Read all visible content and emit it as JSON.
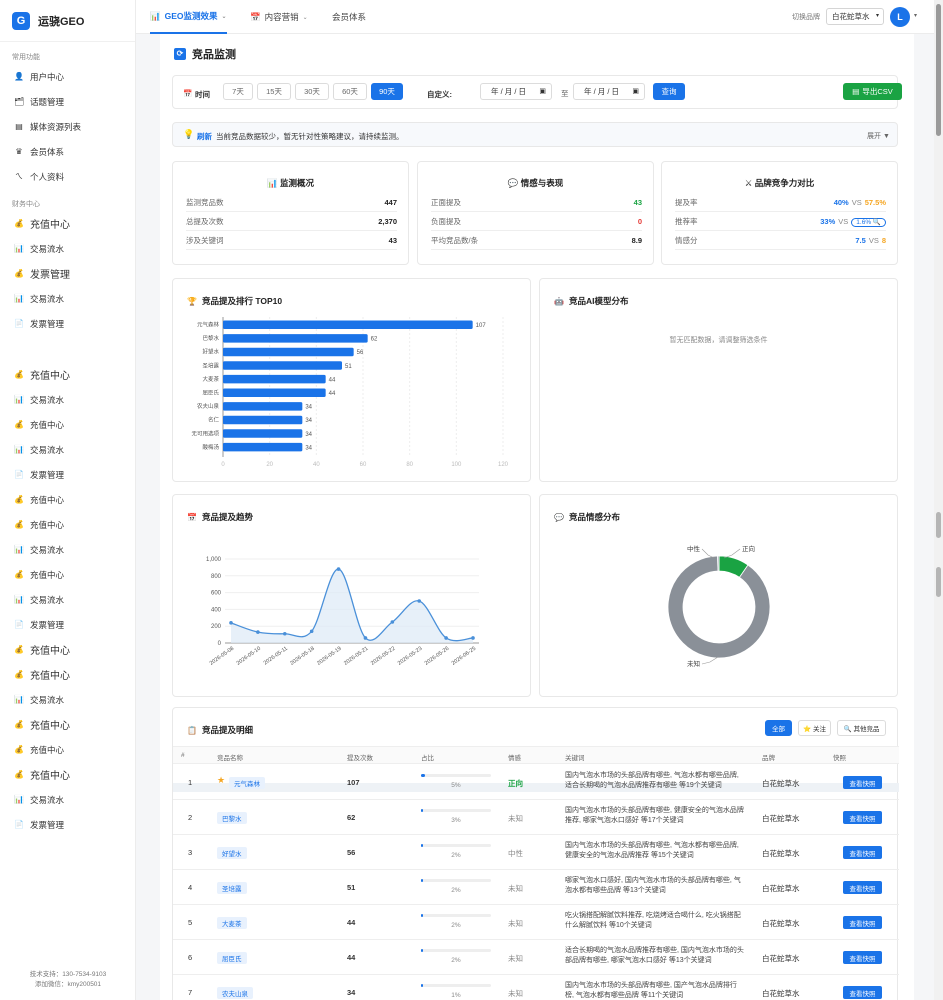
{
  "app": {
    "logo_letter": "G",
    "name": "运骁GEO"
  },
  "sidebar": {
    "groups": [
      {
        "label": "常用功能",
        "items": [
          {
            "icon": "user-icon",
            "glyph": "👤",
            "label": "用户中心"
          },
          {
            "icon": "topic-icon",
            "glyph": "🗂",
            "label": "话题管理"
          },
          {
            "icon": "media-icon",
            "glyph": "▤",
            "label": "媒体资源列表"
          },
          {
            "icon": "member-icon",
            "glyph": "♛",
            "label": "会员体系"
          },
          {
            "icon": "profile-icon",
            "glyph": "ㄟ",
            "label": "个人资料"
          }
        ]
      },
      {
        "label": "财务中心",
        "items": [
          {
            "icon": "money-bag-icon",
            "glyph": "💰",
            "label": "充值中心",
            "big": true
          },
          {
            "icon": "chart-icon",
            "glyph": "📊",
            "label": "交易流水"
          },
          {
            "icon": "money-bag-icon",
            "glyph": "💰",
            "label": "发票管理",
            "big": true
          },
          {
            "icon": "chart-icon",
            "glyph": "📊",
            "label": "交易流水"
          },
          {
            "icon": "doc-icon",
            "glyph": "📄",
            "label": "发票管理"
          },
          {
            "icon": "money-bag-icon",
            "glyph": "💰",
            "label": "充值中心",
            "big": true
          },
          {
            "icon": "chart-icon",
            "glyph": "📊",
            "label": "交易流水"
          },
          {
            "icon": "money-bag-icon",
            "glyph": "💰",
            "label": "充值中心"
          },
          {
            "icon": "chart-icon",
            "glyph": "📊",
            "label": "交易流水"
          },
          {
            "icon": "doc-icon",
            "glyph": "📄",
            "label": "发票管理"
          },
          {
            "icon": "money-bag-icon",
            "glyph": "💰",
            "label": "充值中心"
          },
          {
            "icon": "money-bag-icon",
            "glyph": "💰",
            "label": "充值中心"
          },
          {
            "icon": "chart-icon",
            "glyph": "📊",
            "label": "交易流水"
          },
          {
            "icon": "money-bag-icon",
            "glyph": "💰",
            "label": "充值中心"
          },
          {
            "icon": "chart-icon",
            "glyph": "📊",
            "label": "交易流水"
          },
          {
            "icon": "doc-icon",
            "glyph": "📄",
            "label": "发票管理"
          },
          {
            "icon": "money-bag-icon",
            "glyph": "💰",
            "label": "充值中心",
            "big": true
          },
          {
            "icon": "money-bag-icon",
            "glyph": "💰",
            "label": "充值中心",
            "big": true
          },
          {
            "icon": "chart-icon",
            "glyph": "📊",
            "label": "交易流水"
          },
          {
            "icon": "money-bag-icon",
            "glyph": "💰",
            "label": "充值中心",
            "big": true
          },
          {
            "icon": "money-bag-icon",
            "glyph": "💰",
            "label": "充值中心"
          },
          {
            "icon": "money-bag-icon",
            "glyph": "💰",
            "label": "充值中心",
            "big": true
          },
          {
            "icon": "chart-icon",
            "glyph": "📊",
            "label": "交易流水"
          },
          {
            "icon": "doc-icon",
            "glyph": "📄",
            "label": "发票管理"
          }
        ]
      }
    ],
    "footer": {
      "support": "技术支持：130-7534-9103",
      "wechat": "添加微信：kmy200501"
    }
  },
  "topbar": {
    "tabs": [
      {
        "icon": "📊",
        "label": "GEO监测效果",
        "active": true,
        "caret": "⌄"
      },
      {
        "icon": "📅",
        "label": "内容营销",
        "active": false,
        "caret": "⌄"
      },
      {
        "icon": "",
        "label": "会员体系",
        "active": false,
        "caret": ""
      }
    ],
    "brand_label": "切换品牌",
    "brand_value": "白花蛇草水",
    "avatar_letter": "L"
  },
  "page": {
    "title": "竞品监测"
  },
  "filters": {
    "time_label": "时间",
    "ranges": [
      "7天",
      "15天",
      "30天",
      "60天",
      "90天"
    ],
    "active_range": "90天",
    "custom_label": "自定义:",
    "date_placeholder": "年 / 月 / 日",
    "to_label": "至",
    "query_label": "查询",
    "export_label": "导出CSV"
  },
  "tip": {
    "highlight": "刷新",
    "text": "当前竞品数据较少，暂无针对性策略建议，请持续监测。",
    "expand": "展开 ▼"
  },
  "overview": {
    "title": "监测概况",
    "rows": [
      {
        "label": "监测竞品数",
        "value": "447"
      },
      {
        "label": "总提及次数",
        "value": "2,370"
      },
      {
        "label": "涉及关键词",
        "value": "43"
      }
    ]
  },
  "sentiment_perf": {
    "title": "情感与表现",
    "rows": [
      {
        "label": "正面提及",
        "value": "43",
        "tone": "green"
      },
      {
        "label": "负面提及",
        "value": "0",
        "tone": "red"
      },
      {
        "label": "平均竞品数/条",
        "value": "8.9",
        "tone": ""
      }
    ]
  },
  "compare": {
    "title": "品牌竞争力对比",
    "vs": "VS",
    "rows": [
      {
        "label": "提及率",
        "ours": "40%",
        "theirs": "57.5%"
      },
      {
        "label": "推荐率",
        "ours": "33%",
        "theirs": "1.6% 🔍"
      },
      {
        "label": "情感分",
        "ours": "7.5",
        "theirs": "8"
      }
    ]
  },
  "top10": {
    "title": "竞品提及排行 TOP10"
  },
  "ai_dist": {
    "title": "竞品AI模型分布",
    "empty": "暂无匹配数据，请调整筛选条件"
  },
  "trend": {
    "title": "竞品提及趋势"
  },
  "sentiment_dist": {
    "title": "竞品情感分布"
  },
  "chart_data": [
    {
      "type": "bar",
      "orientation": "horizontal",
      "title": "竞品提及排行 TOP10",
      "categories": [
        "元气森林",
        "巴黎水",
        "好望水",
        "圣培露",
        "大麦茶",
        "屈臣氏",
        "农夫山泉",
        "名仁",
        "无可用选项",
        "酸梅汤"
      ],
      "values": [
        107,
        62,
        56,
        51,
        44,
        44,
        34,
        34,
        34,
        34
      ],
      "xlim": [
        0,
        120
      ],
      "xticks": [
        "0",
        "20",
        "40",
        "60",
        "80",
        "100",
        "120"
      ],
      "color": "#1a73e8",
      "grid": true
    },
    {
      "type": "line",
      "title": "竞品提及趋势",
      "x": [
        "2026-05-08",
        "2026-05-10",
        "2026-05-11",
        "2026-05-18",
        "2026-05-19",
        "2026-05-21",
        "2026-05-22",
        "2026-05-23",
        "2026-05-26",
        "2026-06-25"
      ],
      "values": [
        240,
        130,
        110,
        140,
        880,
        60,
        250,
        500,
        60,
        60
      ],
      "ylim": [
        0,
        1000
      ],
      "yticks": [
        "0",
        "200",
        "400",
        "600",
        "800",
        "1,000"
      ],
      "color": "#4a90d9",
      "area": true,
      "smooth": true
    },
    {
      "type": "pie",
      "donut": true,
      "title": "竞品情感分布",
      "slices": [
        {
          "label": "正向",
          "value": 43,
          "color": "#1aa343"
        },
        {
          "label": "中性",
          "value": 2,
          "color": "#9aa4ad"
        },
        {
          "label": "未知",
          "value": 402,
          "color": "#8a9098"
        }
      ]
    }
  ],
  "table": {
    "title": "竞品提及明细",
    "filters": [
      {
        "label": "全部",
        "active": true
      },
      {
        "label": "⭐ 关注",
        "active": false
      },
      {
        "label": "🔍 其他竞品",
        "active": false
      }
    ],
    "headers": [
      "#",
      "竞品名称",
      "提及次数",
      "占比",
      "情感",
      "关键词",
      "品牌",
      "快照"
    ],
    "snapshot_label": "查看快照",
    "rows": [
      {
        "idx": "1",
        "name": "元气森林",
        "star": true,
        "count": "107",
        "pct": "5%",
        "pct_value": 5,
        "sentiment": "正向",
        "pos": true,
        "keywords": "国内气泡水市场的头部品牌有哪些, 气泡水都有哪些品牌, 适合长期喝的气泡水品牌推荐有哪些 等19个关键词",
        "brand": "白花蛇草水"
      },
      {
        "idx": "2",
        "name": "巴黎水",
        "star": false,
        "count": "62",
        "pct": "3%",
        "pct_value": 3,
        "sentiment": "未知",
        "pos": false,
        "keywords": "国内气泡水市场的头部品牌有哪些, 健康安全的气泡水品牌推荐, 哪家气泡水口感好 等17个关键词",
        "brand": "白花蛇草水"
      },
      {
        "idx": "3",
        "name": "好望水",
        "star": false,
        "count": "56",
        "pct": "2%",
        "pct_value": 2,
        "sentiment": "中性",
        "pos": false,
        "keywords": "国内气泡水市场的头部品牌有哪些, 气泡水都有哪些品牌, 健康安全的气泡水品牌推荐 等15个关键词",
        "brand": "白花蛇草水"
      },
      {
        "idx": "4",
        "name": "圣培露",
        "star": false,
        "count": "51",
        "pct": "2%",
        "pct_value": 2,
        "sentiment": "未知",
        "pos": false,
        "keywords": "哪家气泡水口感好, 国内气泡水市场的头部品牌有哪些, 气泡水都有哪些品牌 等13个关键词",
        "brand": "白花蛇草水"
      },
      {
        "idx": "5",
        "name": "大麦茶",
        "star": false,
        "count": "44",
        "pct": "2%",
        "pct_value": 2,
        "sentiment": "未知",
        "pos": false,
        "keywords": "吃火锅搭配解腻饮料推荐, 吃烧烤适合喝什么, 吃火锅搭配什么解腻饮料 等10个关键词",
        "brand": "白花蛇草水"
      },
      {
        "idx": "6",
        "name": "屈臣氏",
        "star": false,
        "count": "44",
        "pct": "2%",
        "pct_value": 2,
        "sentiment": "未知",
        "pos": false,
        "keywords": "适合长期喝的气泡水品牌推荐有哪些, 国内气泡水市场的头部品牌有哪些, 哪家气泡水口感好 等13个关键词",
        "brand": "白花蛇草水"
      },
      {
        "idx": "7",
        "name": "农夫山泉",
        "star": false,
        "count": "34",
        "pct": "1%",
        "pct_value": 1,
        "sentiment": "未知",
        "pos": false,
        "keywords": "国内气泡水市场的头部品牌有哪些, 国产气泡水品牌排行榜, 气泡水都有哪些品牌 等11个关键词",
        "brand": "白花蛇草水"
      }
    ]
  }
}
